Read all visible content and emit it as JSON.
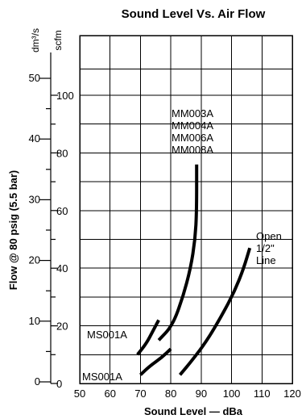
{
  "chart_data": {
    "type": "line",
    "title": "Sound Level Vs. Air Flow",
    "xlabel": "Sound Level — dBa",
    "ylabel": "Flow @ 80 psig (5.5 bar)",
    "y_unit_left": "dm³/s",
    "y_unit_right": "scfm",
    "xlim": [
      50,
      120
    ],
    "ylim_scfm": [
      0,
      110
    ],
    "xticks": [
      50,
      60,
      70,
      80,
      90,
      100,
      110,
      120
    ],
    "yticks_left_dm3s": [
      0,
      10,
      20,
      30,
      40,
      50
    ],
    "yticks_right_scfm": [
      0,
      20,
      40,
      60,
      80,
      100
    ],
    "grid": true,
    "annotations": [
      {
        "lines": [
          "MM003A",
          "MM004A",
          "MM006A",
          "MM008A"
        ],
        "x": 88,
        "y_scfm": 91
      },
      {
        "lines": [
          "Open",
          "1/2\"",
          "Line"
        ],
        "x": 104,
        "y_scfm": 50
      },
      {
        "lines": [
          "MS001A"
        ],
        "x": 70,
        "y_scfm": 15
      },
      {
        "lines": [
          "MS001A"
        ],
        "x": 70,
        "y_scfm": 2
      }
    ],
    "series": [
      {
        "x": [
          88.5,
          88.5,
          88.0,
          86.5,
          84.0,
          80.5,
          76.0
        ],
        "y": [
          76,
          60,
          50,
          40,
          30,
          20,
          15
        ]
      },
      {
        "x": [
          69,
          72,
          74,
          76
        ],
        "y": [
          10,
          14,
          18,
          22
        ]
      },
      {
        "x": [
          70,
          73,
          77,
          80
        ],
        "y": [
          3,
          6,
          9,
          12
        ]
      },
      {
        "x": [
          83,
          87,
          92,
          97,
          101,
          104,
          106
        ],
        "y": [
          3,
          8,
          15,
          24,
          32,
          40,
          47
        ]
      }
    ]
  }
}
